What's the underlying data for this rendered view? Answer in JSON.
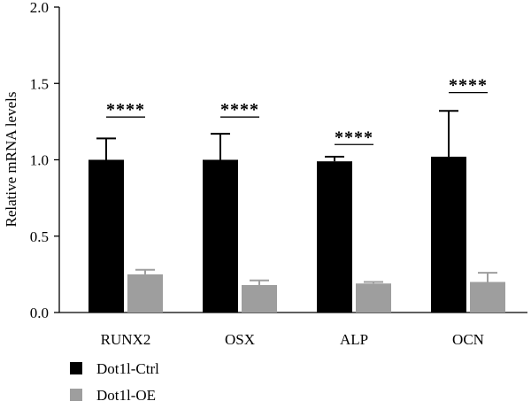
{
  "chart_data": {
    "type": "bar",
    "categories": [
      "RUNX2",
      "OSX",
      "ALP",
      "OCN"
    ],
    "series": [
      {
        "name": "Dot1l-Ctrl",
        "color": "#000000",
        "values": [
          1.0,
          1.0,
          0.99,
          1.02
        ],
        "error": [
          0.14,
          0.17,
          0.03,
          0.3
        ]
      },
      {
        "name": "Dot1l-OE",
        "color": "#9e9e9e",
        "values": [
          0.25,
          0.18,
          0.19,
          0.2
        ],
        "error": [
          0.03,
          0.03,
          0.01,
          0.06
        ]
      }
    ],
    "significance": [
      {
        "category": "RUNX2",
        "label": "****",
        "level": 1.28
      },
      {
        "category": "OSX",
        "label": "****",
        "level": 1.28
      },
      {
        "category": "ALP",
        "label": "****",
        "level": 1.1
      },
      {
        "category": "OCN",
        "label": "****",
        "level": 1.44
      }
    ],
    "ylabel": "Relative mRNA levels",
    "xlabel": "",
    "ylim": [
      0,
      2.0
    ],
    "yticks": [
      "0.0",
      "0.5",
      "1.0",
      "1.5",
      "2.0"
    ],
    "legend_position": "bottom-left",
    "grid": false
  }
}
